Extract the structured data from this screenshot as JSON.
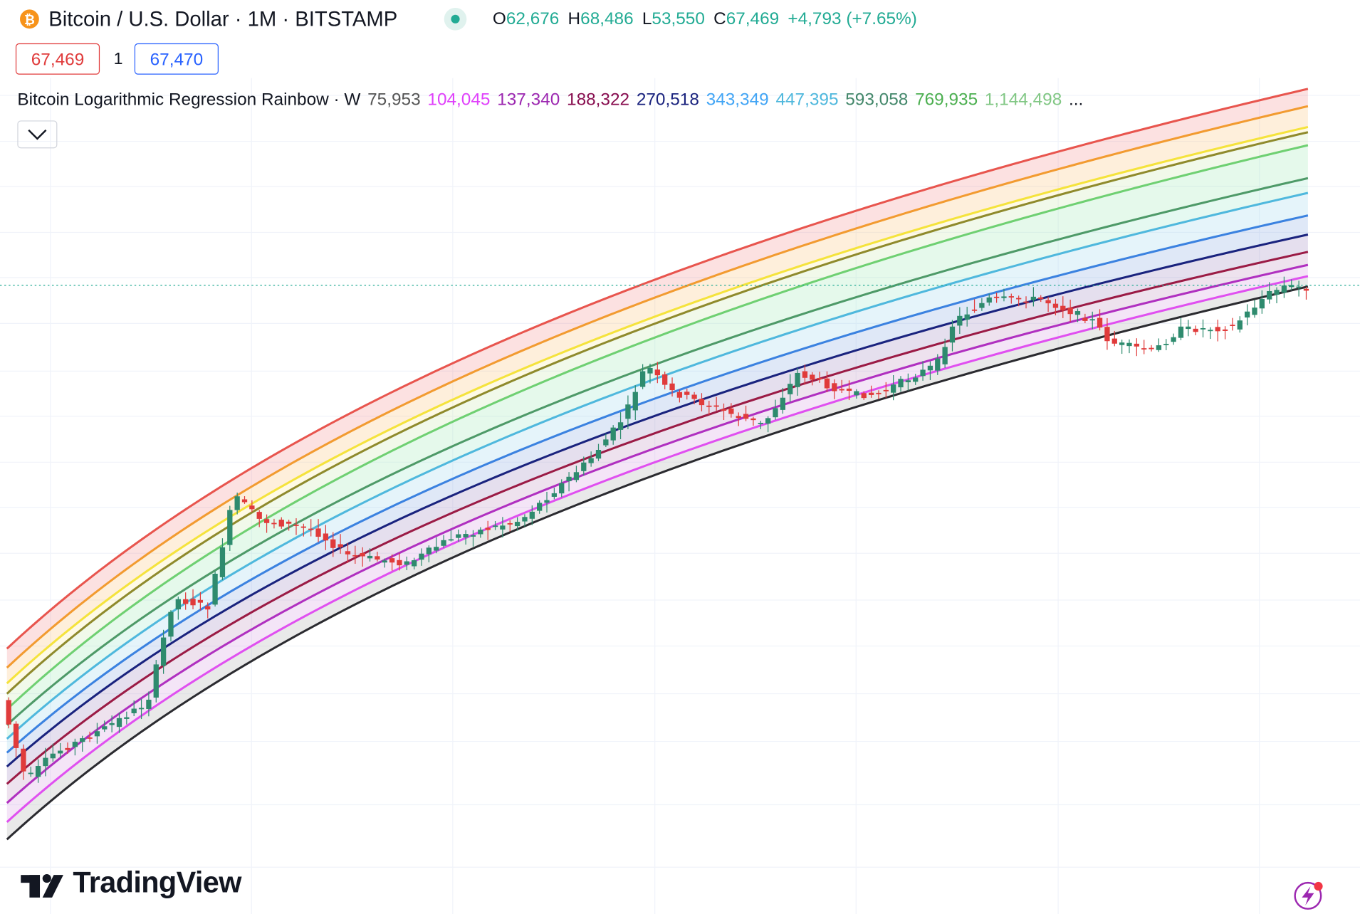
{
  "header": {
    "symbol": "Bitcoin / U.S. Dollar · 1M · BITSTAMP",
    "ohlc": [
      {
        "label": "O",
        "value": "62,676"
      },
      {
        "label": "H",
        "value": "68,486"
      },
      {
        "label": "L",
        "value": "53,550"
      },
      {
        "label": "C",
        "value": "67,469"
      }
    ],
    "change": "+4,793 (+7.65%)"
  },
  "trade": {
    "sell": "67,469",
    "quantity": "1",
    "buy": "67,470"
  },
  "indicator": {
    "name": "Bitcoin Logarithmic Regression Rainbow · W",
    "values": [
      {
        "text": "75,953",
        "color": "#555555"
      },
      {
        "text": "104,045",
        "color": "#e040fb"
      },
      {
        "text": "137,340",
        "color": "#9c27b0"
      },
      {
        "text": "188,322",
        "color": "#880e4f"
      },
      {
        "text": "270,518",
        "color": "#1a237e"
      },
      {
        "text": "343,349",
        "color": "#42a5f5"
      },
      {
        "text": "447,395",
        "color": "#4fb8dd"
      },
      {
        "text": "593,058",
        "color": "#43876a"
      },
      {
        "text": "769,935",
        "color": "#4caf50"
      },
      {
        "text": "1,144,498",
        "color": "#81c784"
      }
    ],
    "more": "..."
  },
  "logo": "TradingView"
}
